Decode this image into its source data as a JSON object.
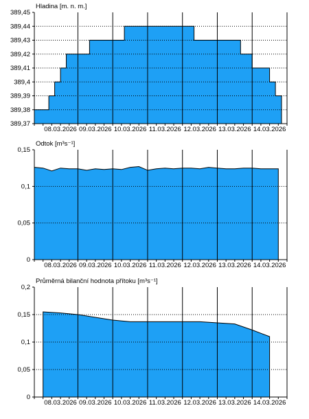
{
  "colors": {
    "fill": "#1ea0f5",
    "stroke": "#000000",
    "grid": "#000000",
    "background": "#ffffff"
  },
  "x_dates": [
    "08.03.2026",
    "09.03.2026",
    "10.03.2026",
    "11.03.2026",
    "12.03.2026",
    "13.03.2026",
    "14.03.2026"
  ],
  "chart_data": [
    {
      "type": "area",
      "title": "Hladina [m. n. m.]",
      "step": true,
      "ylim": [
        389.37,
        389.45
      ],
      "yticks": [
        389.37,
        389.38,
        389.39,
        389.4,
        389.41,
        389.42,
        389.43,
        389.44,
        389.45
      ],
      "ytick_labels": [
        "389,37",
        "389,38",
        "389,39",
        "389,4",
        "389,41",
        "389,42",
        "389,43",
        "389,44",
        "389,45"
      ],
      "grid": true,
      "x": [
        "07.03.2026 18:00",
        "08.03.2026 00:00",
        "08.03.2026 04:00",
        "08.03.2026 08:00",
        "08.03.2026 12:00",
        "08.03.2026 16:00",
        "09.03.2026 08:00",
        "10.03.2026 08:00",
        "11.03.2026 08:00",
        "12.03.2026 08:00",
        "13.03.2026 08:00",
        "13.03.2026 16:00",
        "14.03.2026 00:00",
        "14.03.2026 12:00",
        "14.03.2026 16:00"
      ],
      "values": [
        389.38,
        389.38,
        389.39,
        389.4,
        389.41,
        389.42,
        389.43,
        389.44,
        389.44,
        389.43,
        389.43,
        389.42,
        389.41,
        389.4,
        389.39
      ]
    },
    {
      "type": "area",
      "title": "Odtok [m³s⁻¹]",
      "ylim": [
        0,
        0.15
      ],
      "yticks": [
        0,
        0.05,
        0.1,
        0.15
      ],
      "ytick_labels": [
        "0",
        "0,05",
        "0,1",
        "0,15"
      ],
      "grid": true,
      "x": [
        "07.03.2026 18:00",
        "08.03.2026 00:00",
        "08.03.2026 06:00",
        "08.03.2026 12:00",
        "08.03.2026 18:00",
        "09.03.2026 00:00",
        "09.03.2026 06:00",
        "09.03.2026 12:00",
        "09.03.2026 18:00",
        "10.03.2026 00:00",
        "10.03.2026 06:00",
        "10.03.2026 12:00",
        "10.03.2026 18:00",
        "11.03.2026 00:00",
        "11.03.2026 06:00",
        "11.03.2026 12:00",
        "11.03.2026 18:00",
        "12.03.2026 00:00",
        "12.03.2026 06:00",
        "12.03.2026 12:00",
        "12.03.2026 18:00",
        "13.03.2026 00:00",
        "13.03.2026 06:00",
        "13.03.2026 12:00",
        "13.03.2026 18:00",
        "14.03.2026 00:00",
        "14.03.2026 06:00",
        "14.03.2026 12:00",
        "14.03.2026 18:00"
      ],
      "values": [
        0.126,
        0.125,
        0.121,
        0.125,
        0.124,
        0.124,
        0.122,
        0.124,
        0.123,
        0.124,
        0.123,
        0.126,
        0.127,
        0.122,
        0.124,
        0.125,
        0.124,
        0.125,
        0.125,
        0.124,
        0.126,
        0.125,
        0.124,
        0.124,
        0.125,
        0.125,
        0.124,
        0.124,
        0.124
      ]
    },
    {
      "type": "area",
      "title": "Průměrná bilanční hodnota přítoku [m³s⁻¹]",
      "ylim": [
        0,
        0.2
      ],
      "yticks": [
        0,
        0.05,
        0.1,
        0.15,
        0.2
      ],
      "ytick_labels": [
        "0",
        "0,05",
        "0,1",
        "0,15",
        "0,2"
      ],
      "grid": true,
      "x": [
        "08.03.2026 00:00",
        "08.03.2026 12:00",
        "09.03.2026 00:00",
        "09.03.2026 12:00",
        "10.03.2026 00:00",
        "10.03.2026 12:00",
        "11.03.2026 00:00",
        "11.03.2026 12:00",
        "12.03.2026 00:00",
        "12.03.2026 12:00",
        "13.03.2026 00:00",
        "13.03.2026 12:00",
        "14.03.2026 00:00",
        "14.03.2026 12:00"
      ],
      "values": [
        0.155,
        0.153,
        0.15,
        0.145,
        0.14,
        0.137,
        0.137,
        0.137,
        0.137,
        0.137,
        0.135,
        0.133,
        0.122,
        0.11
      ]
    }
  ]
}
